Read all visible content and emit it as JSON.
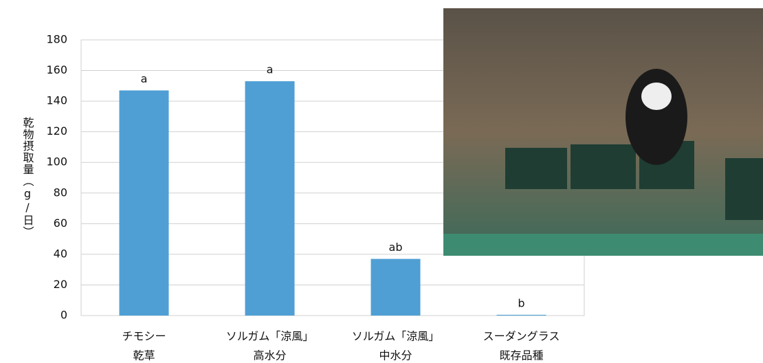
{
  "chart_data": {
    "type": "bar",
    "y_label": "乾物摂取量（g/日）",
    "categories": [
      [
        "チモシー",
        "乾草"
      ],
      [
        "ソルガム「涼風」",
        "高水分"
      ],
      [
        "ソルガム「涼風」",
        "中水分"
      ],
      [
        "スーダングラス",
        "既存品種"
      ]
    ],
    "values": [
      147,
      153,
      37,
      0.5
    ],
    "significance": [
      "a",
      "a",
      "ab",
      "b"
    ],
    "color": "#4f9fd4",
    "ylim": [
      0,
      180
    ],
    "yticks": [
      0,
      20,
      40,
      60,
      80,
      100,
      120,
      140,
      160,
      180
    ],
    "grid": true
  }
}
